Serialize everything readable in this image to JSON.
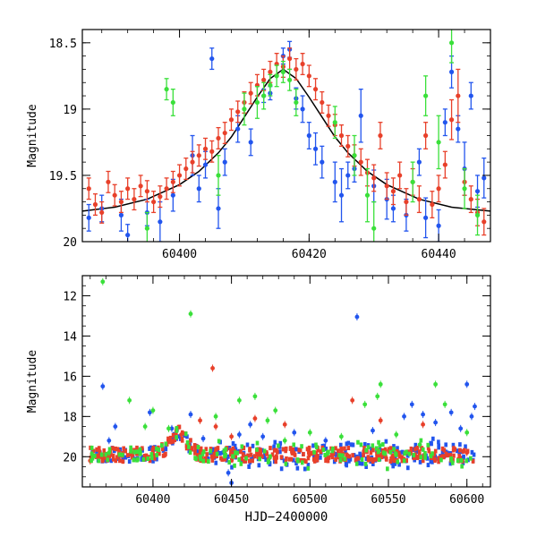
{
  "chart_data": [
    {
      "type": "scatter",
      "title": "",
      "xlabel": "",
      "ylabel": "Magnitude",
      "xlim": [
        60385,
        60448
      ],
      "ylim": [
        20.0,
        18.4
      ],
      "y_inverted": true,
      "xticks": [
        60400,
        60420,
        60440
      ],
      "yticks": [
        18.5,
        19,
        19.5,
        20
      ],
      "ytick_labels": [
        "18.5",
        "19",
        "19.5",
        "20"
      ],
      "xtick_labels": [
        "60400",
        "60420",
        "60440"
      ],
      "grid": false,
      "legend": "none",
      "series": [
        {
          "color": "#2255ee",
          "points": [
            [
              60386,
              19.82,
              0.1
            ],
            [
              60388,
              19.75,
              0.1
            ],
            [
              60391,
              19.8,
              0.12
            ],
            [
              60392,
              19.95,
              0.08
            ],
            [
              60395,
              19.78,
              0.1
            ],
            [
              60397,
              19.85,
              0.15
            ],
            [
              60399,
              19.65,
              0.12
            ],
            [
              60402,
              19.35,
              0.15
            ],
            [
              60403,
              19.6,
              0.1
            ],
            [
              60404,
              19.42,
              0.1
            ],
            [
              60405,
              18.62,
              0.08
            ],
            [
              60406,
              19.75,
              0.15
            ],
            [
              60407,
              19.4,
              0.1
            ],
            [
              60409,
              19.15,
              0.1
            ],
            [
              60411,
              19.25,
              0.1
            ],
            [
              60413,
              18.9,
              0.05
            ],
            [
              60414,
              18.88,
              0.05
            ],
            [
              60416,
              18.6,
              0.06
            ],
            [
              60417,
              18.55,
              0.06
            ],
            [
              60418,
              18.92,
              0.08
            ],
            [
              60419,
              19.0,
              0.1
            ],
            [
              60420,
              19.2,
              0.1
            ],
            [
              60421,
              19.3,
              0.12
            ],
            [
              60422,
              19.4,
              0.12
            ],
            [
              60424,
              19.55,
              0.15
            ],
            [
              60425,
              19.65,
              0.2
            ],
            [
              60426,
              19.5,
              0.1
            ],
            [
              60427,
              19.45,
              0.1
            ],
            [
              60428,
              19.05,
              0.2
            ],
            [
              60430,
              19.58,
              0.12
            ],
            [
              60432,
              19.68,
              0.15
            ],
            [
              60433,
              19.75,
              0.1
            ],
            [
              60435,
              19.8,
              0.12
            ],
            [
              60437,
              19.4,
              0.1
            ],
            [
              60438,
              19.82,
              0.15
            ],
            [
              60440,
              19.88,
              0.12
            ],
            [
              60441,
              19.1,
              0.1
            ],
            [
              60442,
              18.72,
              0.12
            ],
            [
              60443,
              19.15,
              0.1
            ],
            [
              60444,
              19.45,
              0.2
            ],
            [
              60445,
              18.9,
              0.1
            ],
            [
              60446,
              19.62,
              0.12
            ],
            [
              60447,
              19.52,
              0.15
            ]
          ]
        },
        {
          "color": "#e8402a",
          "points": [
            [
              60386,
              19.6,
              0.08
            ],
            [
              60387,
              19.72,
              0.08
            ],
            [
              60388,
              19.78,
              0.08
            ],
            [
              60389,
              19.55,
              0.08
            ],
            [
              60390,
              19.65,
              0.08
            ],
            [
              60391,
              19.7,
              0.08
            ],
            [
              60392,
              19.6,
              0.08
            ],
            [
              60393,
              19.68,
              0.08
            ],
            [
              60394,
              19.58,
              0.08
            ],
            [
              60395,
              19.62,
              0.08
            ],
            [
              60396,
              19.7,
              0.08
            ],
            [
              60397,
              19.66,
              0.08
            ],
            [
              60398,
              19.6,
              0.08
            ],
            [
              60399,
              19.55,
              0.08
            ],
            [
              60400,
              19.5,
              0.08
            ],
            [
              60401,
              19.45,
              0.08
            ],
            [
              60402,
              19.4,
              0.08
            ],
            [
              60403,
              19.35,
              0.08
            ],
            [
              60404,
              19.3,
              0.08
            ],
            [
              60405,
              19.32,
              0.08
            ],
            [
              60406,
              19.22,
              0.08
            ],
            [
              60407,
              19.18,
              0.08
            ],
            [
              60408,
              19.08,
              0.08
            ],
            [
              60409,
              19.02,
              0.08
            ],
            [
              60410,
              18.95,
              0.08
            ],
            [
              60411,
              18.88,
              0.08
            ],
            [
              60412,
              18.82,
              0.08
            ],
            [
              60413,
              18.78,
              0.08
            ],
            [
              60414,
              18.72,
              0.08
            ],
            [
              60415,
              18.66,
              0.08
            ],
            [
              60416,
              18.68,
              0.08
            ],
            [
              60417,
              18.62,
              0.08
            ],
            [
              60418,
              18.7,
              0.08
            ],
            [
              60419,
              18.66,
              0.08
            ],
            [
              60420,
              18.75,
              0.08
            ],
            [
              60421,
              18.85,
              0.08
            ],
            [
              60422,
              18.95,
              0.08
            ],
            [
              60423,
              19.05,
              0.08
            ],
            [
              60424,
              19.12,
              0.08
            ],
            [
              60425,
              19.2,
              0.08
            ],
            [
              60426,
              19.28,
              0.08
            ],
            [
              60427,
              19.35,
              0.08
            ],
            [
              60428,
              19.4,
              0.1
            ],
            [
              60429,
              19.48,
              0.1
            ],
            [
              60430,
              19.52,
              0.1
            ],
            [
              60431,
              19.2,
              0.1
            ],
            [
              60432,
              19.58,
              0.1
            ],
            [
              60433,
              19.62,
              0.1
            ],
            [
              60434,
              19.5,
              0.1
            ],
            [
              60435,
              19.7,
              0.1
            ],
            [
              60436,
              19.55,
              0.1
            ],
            [
              60437,
              19.68,
              0.1
            ],
            [
              60438,
              19.2,
              0.1
            ],
            [
              60439,
              19.72,
              0.1
            ],
            [
              60440,
              19.6,
              0.1
            ],
            [
              60441,
              19.42,
              0.1
            ],
            [
              60442,
              19.08,
              0.15
            ],
            [
              60443,
              18.9,
              0.2
            ],
            [
              60444,
              19.55,
              0.1
            ],
            [
              60445,
              19.68,
              0.1
            ],
            [
              60446,
              19.78,
              0.1
            ],
            [
              60447,
              19.85,
              0.1
            ]
          ]
        },
        {
          "color": "#3ae03a",
          "points": [
            [
              60395,
              19.9,
              0.12
            ],
            [
              60398,
              18.85,
              0.08
            ],
            [
              60399,
              18.95,
              0.1
            ],
            [
              60406,
              19.5,
              0.15
            ],
            [
              60410,
              19.0,
              0.12
            ],
            [
              60412,
              18.95,
              0.12
            ],
            [
              60413,
              18.9,
              0.1
            ],
            [
              60414,
              18.82,
              0.08
            ],
            [
              60415,
              18.75,
              0.08
            ],
            [
              60416,
              18.72,
              0.08
            ],
            [
              60417,
              18.78,
              0.08
            ],
            [
              60418,
              18.95,
              0.1
            ],
            [
              60424,
              19.1,
              0.12
            ],
            [
              60427,
              19.35,
              0.15
            ],
            [
              60429,
              19.65,
              0.2
            ],
            [
              60430,
              19.9,
              0.2
            ],
            [
              60436,
              19.55,
              0.15
            ],
            [
              60438,
              18.9,
              0.15
            ],
            [
              60440,
              19.25,
              0.2
            ],
            [
              60442,
              18.5,
              0.15
            ],
            [
              60444,
              19.6,
              0.15
            ],
            [
              60446,
              19.8,
              0.15
            ]
          ]
        }
      ],
      "model_curve": {
        "color": "#000000",
        "peak_x": 60416,
        "baseline_mag": 19.78,
        "peak_mag": 18.7,
        "points": [
          [
            60385,
            19.77
          ],
          [
            60390,
            19.74
          ],
          [
            60395,
            19.68
          ],
          [
            60400,
            19.57
          ],
          [
            60403,
            19.47
          ],
          [
            60406,
            19.33
          ],
          [
            60408,
            19.21
          ],
          [
            60410,
            19.06
          ],
          [
            60412,
            18.91
          ],
          [
            60414,
            18.77
          ],
          [
            60416,
            18.7
          ],
          [
            60418,
            18.77
          ],
          [
            60420,
            18.91
          ],
          [
            60422,
            19.06
          ],
          [
            60424,
            19.21
          ],
          [
            60426,
            19.33
          ],
          [
            60429,
            19.47
          ],
          [
            60432,
            19.57
          ],
          [
            60437,
            19.68
          ],
          [
            60442,
            19.74
          ],
          [
            60448,
            19.77
          ]
        ]
      }
    },
    {
      "type": "scatter",
      "title": "",
      "xlabel": "HJD−2400000",
      "ylabel": "Magnitude",
      "xlim": [
        60355,
        60615
      ],
      "ylim": [
        21.5,
        11.0
      ],
      "y_inverted": true,
      "xticks": [
        60400,
        60450,
        60500,
        60550,
        60600
      ],
      "xtick_labels": [
        "60400",
        "60450",
        "60500",
        "60550",
        "60600"
      ],
      "yticks": [
        12,
        14,
        16,
        18,
        20
      ],
      "ytick_labels": [
        "12",
        "14",
        "16",
        "18",
        "20"
      ],
      "grid": false,
      "legend": "none",
      "series": [
        {
          "color": "#2255ee",
          "baseline_dense": true,
          "points": [
            [
              60368,
              16.5
            ],
            [
              60372,
              19.2
            ],
            [
              60376,
              18.5
            ],
            [
              60398,
              17.8
            ],
            [
              60412,
              18.6
            ],
            [
              60424,
              17.9
            ],
            [
              60432,
              19.1
            ],
            [
              60448,
              20.8
            ],
            [
              60450,
              21.3
            ],
            [
              60455,
              18.9
            ],
            [
              60462,
              18.4
            ],
            [
              60470,
              19.0
            ],
            [
              60490,
              18.8
            ],
            [
              60510,
              19.2
            ],
            [
              60530,
              13.05
            ],
            [
              60540,
              18.7
            ],
            [
              60560,
              18.0
            ],
            [
              60565,
              17.4
            ],
            [
              60572,
              17.9
            ],
            [
              60580,
              18.3
            ],
            [
              60590,
              17.8
            ],
            [
              60596,
              18.6
            ],
            [
              60600,
              16.4
            ],
            [
              60603,
              18.0
            ],
            [
              60605,
              17.5
            ]
          ]
        },
        {
          "color": "#e8402a",
          "baseline_dense": true,
          "points": [
            [
              60360,
              20.2
            ],
            [
              60415,
              18.7
            ],
            [
              60418,
              18.9
            ],
            [
              60430,
              18.2
            ],
            [
              60438,
              15.6
            ],
            [
              60440,
              18.5
            ],
            [
              60450,
              19.0
            ],
            [
              60465,
              18.1
            ],
            [
              60484,
              18.4
            ],
            [
              60527,
              17.2
            ],
            [
              60545,
              18.2
            ],
            [
              60572,
              18.4
            ],
            [
              60600,
              19.8
            ]
          ]
        },
        {
          "color": "#3ae03a",
          "baseline_dense": true,
          "points": [
            [
              60368,
              11.3
            ],
            [
              60372,
              19.8
            ],
            [
              60385,
              17.2
            ],
            [
              60395,
              18.5
            ],
            [
              60400,
              17.7
            ],
            [
              60410,
              18.6
            ],
            [
              60424,
              12.9
            ],
            [
              60440,
              18.0
            ],
            [
              60455,
              17.2
            ],
            [
              60465,
              17.0
            ],
            [
              60473,
              18.2
            ],
            [
              60478,
              17.7
            ],
            [
              60484,
              19.2
            ],
            [
              60500,
              18.8
            ],
            [
              60520,
              19.0
            ],
            [
              60535,
              17.4
            ],
            [
              60543,
              17.0
            ],
            [
              60545,
              16.4
            ],
            [
              60555,
              18.9
            ],
            [
              60570,
              19.4
            ],
            [
              60580,
              16.4
            ],
            [
              60586,
              17.4
            ],
            [
              60600,
              18.8
            ]
          ]
        }
      ]
    }
  ]
}
